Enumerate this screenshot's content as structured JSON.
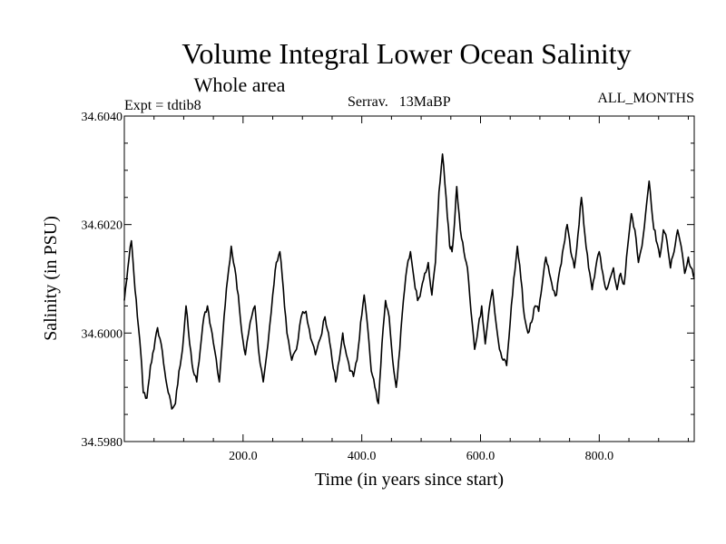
{
  "chart_data": {
    "type": "line",
    "title": "Volume Integral Lower Ocean Salinity",
    "subtitle": "Whole area",
    "expt_label": "Expt = tdtib8",
    "center_label": "Serrav.   13MaBP",
    "right_label": "ALL_MONTHS",
    "xlabel": "Time (in years since start)",
    "ylabel": "Salinity (in PSU)",
    "xlim": [
      0,
      960
    ],
    "ylim": [
      34.598,
      34.604
    ],
    "xticks": [
      200,
      400,
      600,
      800
    ],
    "xtick_labels": [
      "200.0",
      "400.0",
      "600.0",
      "800.0"
    ],
    "yticks": [
      34.598,
      34.6,
      34.602,
      34.604
    ],
    "ytick_labels": [
      "34.5980",
      "34.6000",
      "34.6020",
      "34.6040"
    ],
    "grid": false,
    "series": [
      {
        "name": "Lower Ocean Salinity",
        "keypoints": [
          [
            0,
            34.6006
          ],
          [
            6,
            34.6012
          ],
          [
            12,
            34.6017
          ],
          [
            16,
            34.6011
          ],
          [
            22,
            34.6003
          ],
          [
            28,
            34.5996
          ],
          [
            32,
            34.5989
          ],
          [
            38,
            34.5988
          ],
          [
            44,
            34.5994
          ],
          [
            50,
            34.5997
          ],
          [
            56,
            34.6001
          ],
          [
            62,
            34.5998
          ],
          [
            68,
            34.5993
          ],
          [
            74,
            34.5989
          ],
          [
            80,
            34.5986
          ],
          [
            86,
            34.5987
          ],
          [
            92,
            34.5993
          ],
          [
            98,
            34.5997
          ],
          [
            104,
            34.6005
          ],
          [
            110,
            34.5998
          ],
          [
            116,
            34.5993
          ],
          [
            122,
            34.5991
          ],
          [
            128,
            34.5997
          ],
          [
            134,
            34.6003
          ],
          [
            140,
            34.6005
          ],
          [
            146,
            34.6001
          ],
          [
            152,
            34.5997
          ],
          [
            160,
            34.5991
          ],
          [
            168,
            34.6003
          ],
          [
            174,
            34.601
          ],
          [
            180,
            34.6016
          ],
          [
            186,
            34.6012
          ],
          [
            192,
            34.6007
          ],
          [
            198,
            34.6
          ],
          [
            204,
            34.5996
          ],
          [
            212,
            34.6002
          ],
          [
            220,
            34.6005
          ],
          [
            226,
            34.5997
          ],
          [
            234,
            34.5991
          ],
          [
            242,
            34.5998
          ],
          [
            250,
            34.6007
          ],
          [
            256,
            34.6013
          ],
          [
            262,
            34.6015
          ],
          [
            268,
            34.6008
          ],
          [
            274,
            34.6
          ],
          [
            282,
            34.5995
          ],
          [
            290,
            34.5997
          ],
          [
            298,
            34.6003
          ],
          [
            306,
            34.6004
          ],
          [
            314,
            34.5999
          ],
          [
            322,
            34.5996
          ],
          [
            330,
            34.5999
          ],
          [
            338,
            34.6003
          ],
          [
            344,
            34.6
          ],
          [
            350,
            34.5995
          ],
          [
            356,
            34.5991
          ],
          [
            362,
            34.5995
          ],
          [
            368,
            34.6
          ],
          [
            374,
            34.5996
          ],
          [
            380,
            34.5993
          ],
          [
            386,
            34.5992
          ],
          [
            392,
            34.5995
          ],
          [
            398,
            34.6002
          ],
          [
            404,
            34.6007
          ],
          [
            410,
            34.6001
          ],
          [
            416,
            34.5993
          ],
          [
            422,
            34.599
          ],
          [
            428,
            34.5987
          ],
          [
            434,
            34.5998
          ],
          [
            440,
            34.6006
          ],
          [
            446,
            34.6003
          ],
          [
            452,
            34.5995
          ],
          [
            458,
            34.599
          ],
          [
            464,
            34.5997
          ],
          [
            470,
            34.6006
          ],
          [
            476,
            34.6012
          ],
          [
            482,
            34.6015
          ],
          [
            488,
            34.601
          ],
          [
            494,
            34.6006
          ],
          [
            500,
            34.6008
          ],
          [
            506,
            34.6011
          ],
          [
            512,
            34.6013
          ],
          [
            518,
            34.6007
          ],
          [
            524,
            34.6013
          ],
          [
            530,
            34.6026
          ],
          [
            536,
            34.6033
          ],
          [
            542,
            34.6025
          ],
          [
            548,
            34.6016
          ],
          [
            552,
            34.6015
          ],
          [
            556,
            34.602
          ],
          [
            560,
            34.6027
          ],
          [
            566,
            34.6019
          ],
          [
            572,
            34.6015
          ],
          [
            578,
            34.6012
          ],
          [
            584,
            34.6004
          ],
          [
            590,
            34.5997
          ],
          [
            596,
            34.6001
          ],
          [
            602,
            34.6005
          ],
          [
            608,
            34.5998
          ],
          [
            614,
            34.6004
          ],
          [
            620,
            34.6008
          ],
          [
            626,
            34.6002
          ],
          [
            632,
            34.5997
          ],
          [
            638,
            34.5995
          ],
          [
            644,
            34.5994
          ],
          [
            650,
            34.6002
          ],
          [
            656,
            34.601
          ],
          [
            662,
            34.6016
          ],
          [
            668,
            34.601
          ],
          [
            674,
            34.6003
          ],
          [
            680,
            34.6
          ],
          [
            686,
            34.6002
          ],
          [
            692,
            34.6005
          ],
          [
            698,
            34.6004
          ],
          [
            704,
            34.6009
          ],
          [
            710,
            34.6014
          ],
          [
            716,
            34.6011
          ],
          [
            722,
            34.6008
          ],
          [
            728,
            34.6007
          ],
          [
            734,
            34.6012
          ],
          [
            740,
            34.6016
          ],
          [
            746,
            34.602
          ],
          [
            752,
            34.6015
          ],
          [
            758,
            34.6012
          ],
          [
            764,
            34.6018
          ],
          [
            770,
            34.6025
          ],
          [
            776,
            34.6018
          ],
          [
            782,
            34.6012
          ],
          [
            788,
            34.6008
          ],
          [
            794,
            34.6012
          ],
          [
            800,
            34.6015
          ],
          [
            806,
            34.6011
          ],
          [
            812,
            34.6008
          ],
          [
            818,
            34.601
          ],
          [
            824,
            34.6012
          ],
          [
            830,
            34.6008
          ],
          [
            836,
            34.6011
          ],
          [
            842,
            34.6009
          ],
          [
            848,
            34.6016
          ],
          [
            854,
            34.6022
          ],
          [
            860,
            34.6019
          ],
          [
            866,
            34.6013
          ],
          [
            872,
            34.6016
          ],
          [
            878,
            34.6022
          ],
          [
            884,
            34.6028
          ],
          [
            890,
            34.6021
          ],
          [
            896,
            34.6017
          ],
          [
            902,
            34.6014
          ],
          [
            908,
            34.6019
          ],
          [
            914,
            34.6017
          ],
          [
            920,
            34.6012
          ],
          [
            926,
            34.6015
          ],
          [
            932,
            34.6019
          ],
          [
            938,
            34.6016
          ],
          [
            944,
            34.6011
          ],
          [
            950,
            34.6014
          ],
          [
            955,
            34.6012
          ],
          [
            960,
            34.601
          ]
        ]
      }
    ]
  }
}
